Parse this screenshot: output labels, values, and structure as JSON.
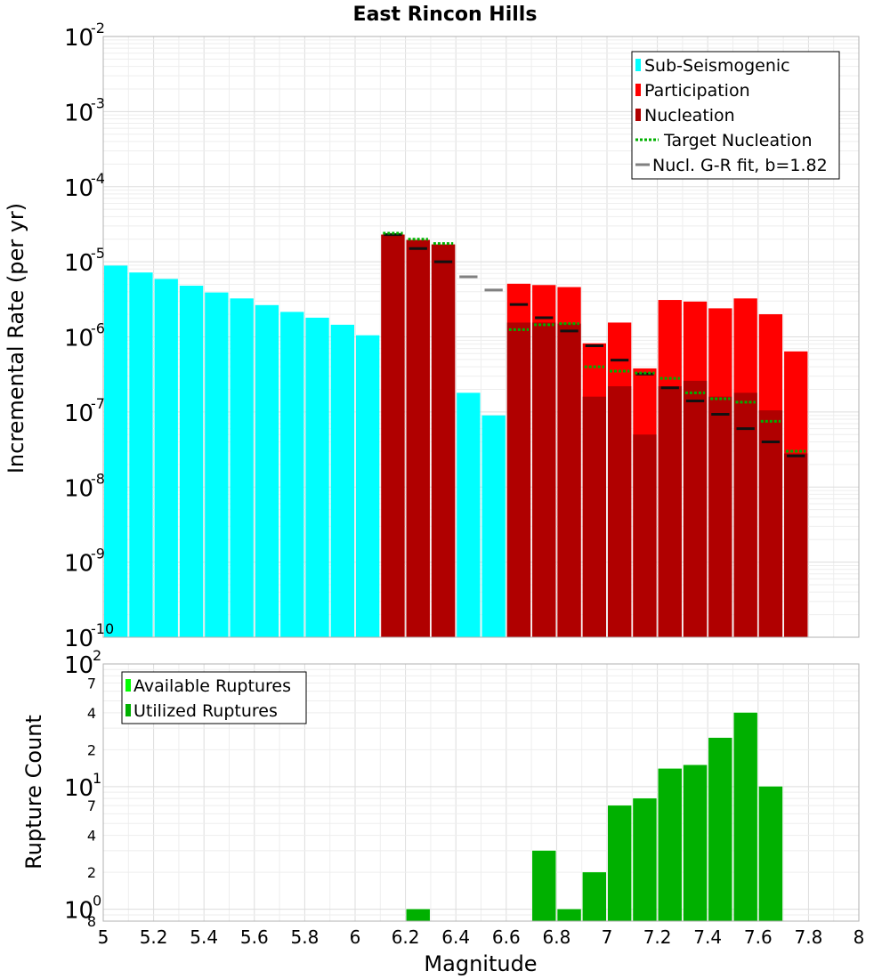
{
  "chart_data": [
    {
      "type": "bar",
      "title": "East Rincon Hills",
      "xlabel": "Magnitude",
      "ylabel": "Incremental Rate (per yr)",
      "yscale": "log",
      "xlim": [
        5,
        8
      ],
      "ylim": [
        1e-10,
        0.01
      ],
      "y_tick_labels": [
        {
          "base": "10",
          "exp": "-10",
          "value": 1e-10
        },
        {
          "base": "10",
          "exp": "-9",
          "value": 1e-09
        },
        {
          "base": "10",
          "exp": "-8",
          "value": 1e-08
        },
        {
          "base": "10",
          "exp": "-7",
          "value": 1e-07
        },
        {
          "base": "10",
          "exp": "-6",
          "value": 1e-06
        },
        {
          "base": "10",
          "exp": "-5",
          "value": 1e-05
        },
        {
          "base": "10",
          "exp": "-4",
          "value": 0.0001
        },
        {
          "base": "10",
          "exp": "-3",
          "value": 0.001
        },
        {
          "base": "10",
          "exp": "-2",
          "value": 0.01
        }
      ],
      "legend": {
        "position": "top-right",
        "entries": [
          {
            "label": "Sub-Seismogenic",
            "color": "#00ffff",
            "style": "bar"
          },
          {
            "label": "Participation",
            "color": "#ff0000",
            "style": "bar"
          },
          {
            "label": "Nucleation",
            "color": "#b00000",
            "style": "bar"
          },
          {
            "label": "Target Nucleation",
            "color": "#00b000",
            "style": "dotted"
          },
          {
            "label": "Nucl. G-R fit, b=1.82",
            "color": "#808080",
            "style": "line"
          }
        ]
      },
      "series": [
        {
          "name": "Sub-Seismogenic",
          "color": "#00ffff",
          "x": [
            5.05,
            5.15,
            5.25,
            5.35,
            5.45,
            5.55,
            5.65,
            5.75,
            5.85,
            5.95,
            6.05,
            6.45,
            6.55
          ],
          "values": [
            8.9e-06,
            7.2e-06,
            5.9e-06,
            4.8e-06,
            3.9e-06,
            3.25e-06,
            2.65e-06,
            2.15e-06,
            1.8e-06,
            1.45e-06,
            1.05e-06,
            1.8e-07,
            9e-08
          ]
        },
        {
          "name": "Participation",
          "color": "#ff0000",
          "x": [
            6.15,
            6.25,
            6.35,
            6.65,
            6.75,
            6.85,
            6.95,
            7.05,
            7.15,
            7.25,
            7.35,
            7.45,
            7.55,
            7.65,
            7.75
          ],
          "values": [
            2.3e-05,
            1.95e-05,
            1.7e-05,
            5.1e-06,
            4.9e-06,
            4.6e-06,
            8.2e-07,
            1.55e-06,
            3.8e-07,
            3.1e-06,
            2.95e-06,
            2.4e-06,
            3.25e-06,
            2e-06,
            6.4e-07
          ]
        },
        {
          "name": "Nucleation",
          "color": "#b00000",
          "x": [
            6.15,
            6.25,
            6.35,
            6.65,
            6.75,
            6.85,
            6.95,
            7.05,
            7.15,
            7.25,
            7.35,
            7.45,
            7.55,
            7.65,
            7.75
          ],
          "values": [
            2.3e-05,
            1.95e-05,
            1.7e-05,
            1.55e-06,
            1.55e-06,
            1.5e-06,
            1.6e-07,
            2.2e-07,
            5e-08,
            2.2e-07,
            2.6e-07,
            1.6e-07,
            1.8e-07,
            1.05e-07,
            2.8e-08
          ]
        },
        {
          "name": "Target Nucleation",
          "color": "#00b000",
          "x": [
            6.15,
            6.25,
            6.35,
            6.65,
            6.75,
            6.85,
            6.95,
            7.05,
            7.15,
            7.25,
            7.35,
            7.45,
            7.55,
            7.65,
            7.75
          ],
          "values": [
            2.4e-05,
            2e-05,
            1.75e-05,
            1.25e-06,
            1.45e-06,
            1.5e-06,
            4e-07,
            3.5e-07,
            3.3e-07,
            2.8e-07,
            1.8e-07,
            1.5e-07,
            1.35e-07,
            7.5e-08,
            3e-08
          ]
        },
        {
          "name": "Nucl. G-R fit, b=1.82",
          "color": "#808080",
          "x": [
            6.15,
            6.25,
            6.35,
            6.45,
            6.55,
            6.65,
            6.75,
            6.85,
            6.95,
            7.05,
            7.15,
            7.25,
            7.35,
            7.45,
            7.55,
            7.65,
            7.75
          ],
          "values": [
            2.3e-05,
            1.5e-05,
            1e-05,
            6.3e-06,
            4.2e-06,
            2.7e-06,
            1.8e-06,
            1.2e-06,
            7.6e-07,
            4.9e-07,
            3.2e-07,
            2.1e-07,
            1.4e-07,
            9.3e-08,
            6e-08,
            4e-08,
            2.6e-08
          ]
        }
      ]
    },
    {
      "type": "bar",
      "title": "",
      "xlabel": "Magnitude",
      "ylabel": "Rupture Count",
      "yscale": "log",
      "xlim": [
        5,
        8
      ],
      "ylim": [
        0.8,
        100
      ],
      "x_tick_labels": [
        "5",
        "5.2",
        "5.4",
        "5.6",
        "5.8",
        "6",
        "6.2",
        "6.4",
        "6.6",
        "6.8",
        "7",
        "7.2",
        "7.4",
        "7.6",
        "7.8",
        "8"
      ],
      "y_major_ticks": [
        {
          "base": "10",
          "exp": "0",
          "value": 1
        },
        {
          "base": "10",
          "exp": "1",
          "value": 10
        },
        {
          "base": "10",
          "exp": "2",
          "value": 100
        }
      ],
      "y_minor_tick_labels": [
        {
          "label": "8",
          "value": 0.8
        },
        {
          "label": "2",
          "value": 2
        },
        {
          "label": "4",
          "value": 4
        },
        {
          "label": "7",
          "value": 7
        },
        {
          "label": "2",
          "value": 20
        },
        {
          "label": "4",
          "value": 40
        },
        {
          "label": "7",
          "value": 70
        }
      ],
      "legend": {
        "position": "top-left",
        "entries": [
          {
            "label": "Available Ruptures",
            "color": "#00ff00",
            "style": "bar"
          },
          {
            "label": "Utilized Ruptures",
            "color": "#00b000",
            "style": "bar"
          }
        ]
      },
      "series": [
        {
          "name": "Available Ruptures",
          "color": "#00ff00",
          "x": [
            6.25,
            6.75,
            6.85,
            6.95,
            7.05,
            7.15,
            7.25,
            7.35,
            7.45,
            7.55,
            7.65
          ],
          "values": [
            1,
            3,
            1,
            2,
            7,
            8,
            14,
            15,
            25,
            40,
            10
          ]
        },
        {
          "name": "Utilized Ruptures",
          "color": "#00b000",
          "x": [
            6.25,
            6.75,
            6.85,
            6.95,
            7.05,
            7.15,
            7.25,
            7.35,
            7.45,
            7.55,
            7.65
          ],
          "values": [
            1,
            3,
            1,
            2,
            7,
            8,
            14,
            15,
            25,
            40,
            10
          ]
        }
      ]
    }
  ]
}
